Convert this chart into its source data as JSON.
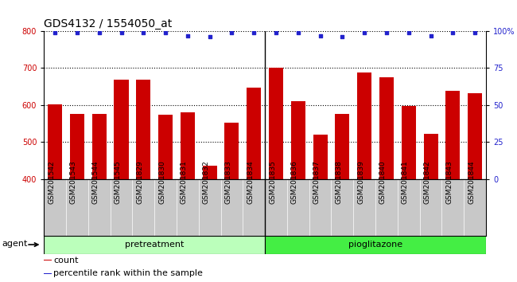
{
  "title": "GDS4132 / 1554050_at",
  "categories": [
    "GSM201542",
    "GSM201543",
    "GSM201544",
    "GSM201545",
    "GSM201829",
    "GSM201830",
    "GSM201831",
    "GSM201832",
    "GSM201833",
    "GSM201834",
    "GSM201835",
    "GSM201836",
    "GSM201837",
    "GSM201838",
    "GSM201839",
    "GSM201840",
    "GSM201841",
    "GSM201842",
    "GSM201843",
    "GSM201844"
  ],
  "bar_values": [
    601,
    577,
    576,
    669,
    669,
    574,
    581,
    436,
    552,
    647,
    701,
    611,
    519,
    577,
    687,
    676,
    597,
    522,
    639,
    633
  ],
  "percentile_values": [
    99,
    99,
    99,
    99,
    99,
    99,
    97,
    96,
    99,
    99,
    99,
    99,
    97,
    96,
    99,
    99,
    99,
    97,
    99,
    99
  ],
  "bar_color": "#cc0000",
  "percentile_color": "#2222cc",
  "ylim_left": [
    400,
    800
  ],
  "ylim_right": [
    0,
    100
  ],
  "yticks_left": [
    400,
    500,
    600,
    700,
    800
  ],
  "yticks_right": [
    0,
    25,
    50,
    75,
    100
  ],
  "yticklabels_right": [
    "0",
    "25",
    "50",
    "75",
    "100%"
  ],
  "pretreatment_count": 10,
  "pioglitazone_count": 10,
  "group_label_pretreatment": "pretreatment",
  "group_label_pioglitazone": "pioglitazone",
  "agent_label": "agent",
  "legend_count_label": "count",
  "legend_percentile_label": "percentile rank within the sample",
  "pretreatment_color": "#bbffbb",
  "pioglitazone_color": "#44ee44",
  "xlabels_bg_color": "#c8c8c8",
  "title_fontsize": 10,
  "tick_fontsize": 7,
  "bar_width": 0.65
}
